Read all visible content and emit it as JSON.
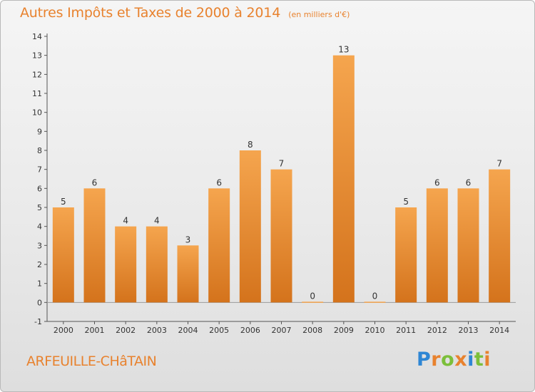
{
  "chart_data": {
    "type": "bar",
    "title": "Autres Impôts et Taxes de 2000 à 2014",
    "subtitle": "(en milliers d'€)",
    "categories": [
      "2000",
      "2001",
      "2002",
      "2003",
      "2004",
      "2005",
      "2006",
      "2007",
      "2008",
      "2009",
      "2010",
      "2011",
      "2012",
      "2013",
      "2014"
    ],
    "values": [
      5,
      6,
      4,
      4,
      3,
      6,
      8,
      7,
      0,
      13,
      0,
      5,
      6,
      6,
      7
    ],
    "xlabel": "",
    "ylabel": "",
    "ylim": [
      -1,
      14
    ],
    "yticks": [
      "-1",
      "0",
      "1",
      "2",
      "3",
      "4",
      "5",
      "6",
      "7",
      "8",
      "9",
      "10",
      "11",
      "12",
      "13",
      "14"
    ],
    "grid": false,
    "colors": {
      "bar_top": "#f5a54e",
      "bar_bottom": "#d4731c",
      "text": "#e8822e"
    }
  },
  "footer": {
    "commune": "ARFEUILLE-CHâTAIN",
    "logo_letters": [
      {
        "char": "P",
        "color": "#2e86d4"
      },
      {
        "char": "r",
        "color": "#e8822e"
      },
      {
        "char": "o",
        "color": "#7bbf3a"
      },
      {
        "char": "x",
        "color": "#e8822e"
      },
      {
        "char": "i",
        "color": "#2e86d4"
      },
      {
        "char": "t",
        "color": "#7bbf3a"
      },
      {
        "char": "i",
        "color": "#e8822e"
      }
    ]
  }
}
